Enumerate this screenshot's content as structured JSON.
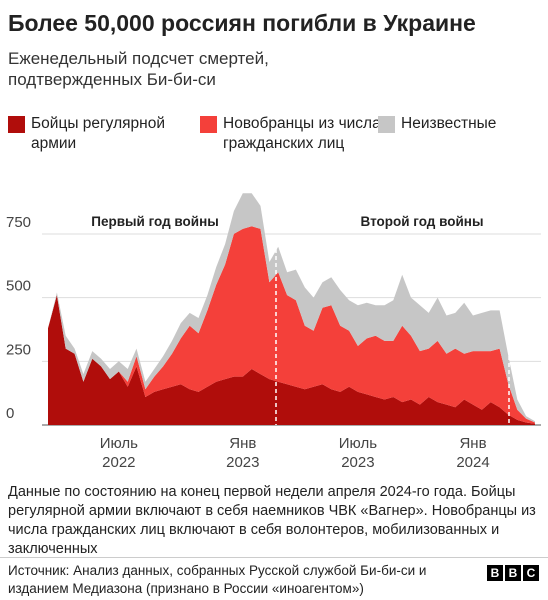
{
  "chart_data": {
    "type": "stacked-area",
    "title": "Более 50,000 россиян погибли в Украине",
    "subtitle": "Еженедельный подсчет смертей, подтвержденных Би-би-си",
    "annotations": [
      "Первый год войны",
      "Второй год войны"
    ],
    "categories": [
      null,
      null,
      null,
      null,
      null,
      null,
      null,
      null,
      "Июль\n2022",
      null,
      null,
      null,
      null,
      null,
      null,
      null,
      null,
      null,
      null,
      null,
      null,
      null,
      "Янв\n2023",
      null,
      null,
      null,
      null,
      null,
      null,
      null,
      null,
      null,
      null,
      null,
      null,
      "Июль\n2023",
      null,
      null,
      null,
      null,
      null,
      null,
      null,
      null,
      null,
      null,
      null,
      null,
      "Янв\n2024",
      null,
      null,
      null,
      null,
      null,
      null,
      null
    ],
    "series": [
      {
        "name": "Бойцы регулярной армии",
        "color": "#b00d0b",
        "values": [
          380,
          510,
          300,
          280,
          170,
          260,
          230,
          180,
          210,
          150,
          230,
          110,
          130,
          140,
          150,
          160,
          140,
          130,
          150,
          170,
          180,
          190,
          190,
          220,
          200,
          180,
          170,
          160,
          150,
          140,
          150,
          160,
          140,
          130,
          150,
          130,
          120,
          110,
          100,
          110,
          90,
          100,
          80,
          110,
          90,
          80,
          70,
          100,
          80,
          60,
          90,
          70,
          40,
          20,
          10,
          5
        ]
      },
      {
        "name": "Новобранцы из числа гражданских лиц",
        "color": "#f4403a",
        "values": [
          0,
          0,
          0,
          0,
          0,
          0,
          0,
          0,
          0,
          20,
          40,
          30,
          60,
          90,
          130,
          180,
          250,
          230,
          300,
          380,
          450,
          560,
          580,
          560,
          570,
          380,
          430,
          350,
          340,
          250,
          220,
          300,
          330,
          260,
          220,
          180,
          220,
          240,
          230,
          220,
          300,
          250,
          210,
          190,
          240,
          200,
          230,
          180,
          210,
          230,
          200,
          230,
          120,
          40,
          15,
          5
        ]
      },
      {
        "name": "Неизвестные",
        "color": "#c6c6c6",
        "values": [
          0,
          10,
          50,
          20,
          30,
          30,
          30,
          40,
          40,
          50,
          30,
          30,
          30,
          40,
          50,
          60,
          50,
          60,
          60,
          70,
          80,
          90,
          140,
          130,
          90,
          80,
          100,
          90,
          120,
          150,
          130,
          100,
          110,
          140,
          120,
          160,
          140,
          120,
          140,
          160,
          200,
          150,
          180,
          140,
          170,
          150,
          140,
          200,
          140,
          150,
          160,
          150,
          110,
          40,
          10,
          5
        ]
      }
    ],
    "ylim": [
      0,
      950
    ],
    "yticks": [
      0,
      250,
      500,
      750
    ],
    "grid": true,
    "notes": "Данные по состоянию на конец первой недели апреля 2024-го года. Бойцы регулярной армии включают в себя наемников ЧВК «Вагнер». Новобранцы из числа гражданских лиц включают в себя волонтеров, мобилизованных и заключенных",
    "source": "Источник: Анализ данных, собранных Русской службой Би-би-си и изданием Медиазона (признано в России «иноагентом»)",
    "logo": [
      "B",
      "B",
      "C"
    ]
  }
}
